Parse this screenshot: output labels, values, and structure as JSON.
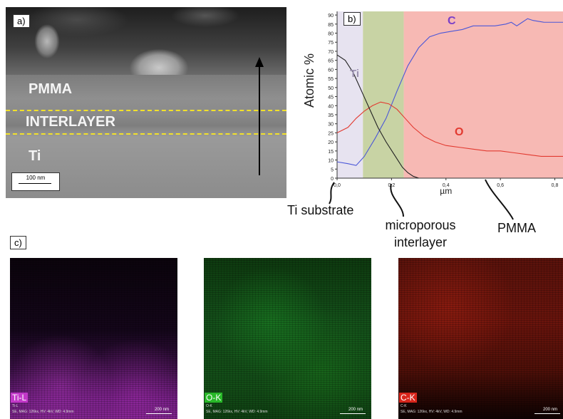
{
  "panel_a": {
    "label": "a)",
    "layers": {
      "top": "PMMA",
      "middle": "INTERLAYER",
      "bottom": "Ti"
    },
    "scale_bar": "100 nm"
  },
  "panel_b": {
    "label": "b)",
    "regions": [
      "Ti substrate",
      "microporous interlayer",
      "PMMA"
    ],
    "region_colors": [
      "#e7e3f0",
      "#c8d3a4",
      "#f7b9b4"
    ]
  },
  "panel_c": {
    "label": "c)",
    "maps": [
      {
        "badge": "Ti-L",
        "sub": "Ti-L",
        "meta": "SE, MAG: 126kx, HV: 4kV, WD: 4.9mm",
        "scale": "200 nm",
        "badge_color": "#c238c8"
      },
      {
        "badge": "O-K",
        "sub": "O-K",
        "meta": "SE, MAG: 126kx, HV: 4kV, WD: 4.9mm",
        "scale": "200 nm",
        "badge_color": "#28b828"
      },
      {
        "badge": "C-K",
        "sub": "C-K",
        "meta": "SE, MAG: 126kx, HV: 4kV, WD: 4.9mm",
        "scale": "200 nm",
        "badge_color": "#d8261c"
      }
    ]
  },
  "chart_data": {
    "type": "line",
    "xlabel": "µm",
    "ylabel": "Atomic %",
    "xlim": [
      0,
      0.83
    ],
    "ylim": [
      0,
      92
    ],
    "xticks": [
      "0,0",
      "0,2",
      "0,4",
      "0,6",
      "0,8"
    ],
    "xtick_values": [
      0,
      0.2,
      0.4,
      0.6,
      0.8
    ],
    "yticks": [
      0,
      5,
      10,
      15,
      20,
      25,
      30,
      35,
      40,
      45,
      50,
      55,
      60,
      65,
      70,
      75,
      80,
      85,
      90
    ],
    "region_bounds": [
      [
        0,
        0.095
      ],
      [
        0.095,
        0.245
      ],
      [
        0.245,
        0.83
      ]
    ],
    "series": [
      {
        "name": "C",
        "color": "#4b57d8",
        "label_color": "#7a3fc8",
        "x": [
          0,
          0.04,
          0.07,
          0.1,
          0.14,
          0.18,
          0.22,
          0.26,
          0.3,
          0.34,
          0.38,
          0.42,
          0.46,
          0.5,
          0.54,
          0.58,
          0.62,
          0.64,
          0.66,
          0.68,
          0.7,
          0.72,
          0.76,
          0.8,
          0.83
        ],
        "y": [
          9,
          8,
          7,
          12,
          22,
          33,
          48,
          62,
          72,
          78,
          80,
          81,
          82,
          84,
          84,
          84,
          85,
          86,
          84,
          86,
          88,
          87,
          86,
          86,
          86
        ]
      },
      {
        "name": "O",
        "color": "#e23a30",
        "label_color": "#e23a30",
        "x": [
          0,
          0.04,
          0.07,
          0.1,
          0.13,
          0.16,
          0.19,
          0.22,
          0.25,
          0.28,
          0.32,
          0.36,
          0.4,
          0.45,
          0.5,
          0.55,
          0.6,
          0.65,
          0.7,
          0.75,
          0.8,
          0.83
        ],
        "y": [
          25,
          28,
          33,
          37,
          40,
          42,
          41,
          38,
          33,
          28,
          23,
          20,
          18,
          17,
          16,
          15,
          15,
          14,
          13,
          12,
          12,
          12
        ]
      },
      {
        "name": "Ti",
        "color": "#222222",
        "label_color": "#9a90b0",
        "x": [
          0,
          0.03,
          0.06,
          0.09,
          0.12,
          0.15,
          0.18,
          0.21,
          0.24,
          0.26,
          0.28,
          0.3
        ],
        "y": [
          68,
          65,
          58,
          48,
          38,
          28,
          20,
          13,
          6,
          3,
          1,
          0
        ]
      }
    ]
  }
}
